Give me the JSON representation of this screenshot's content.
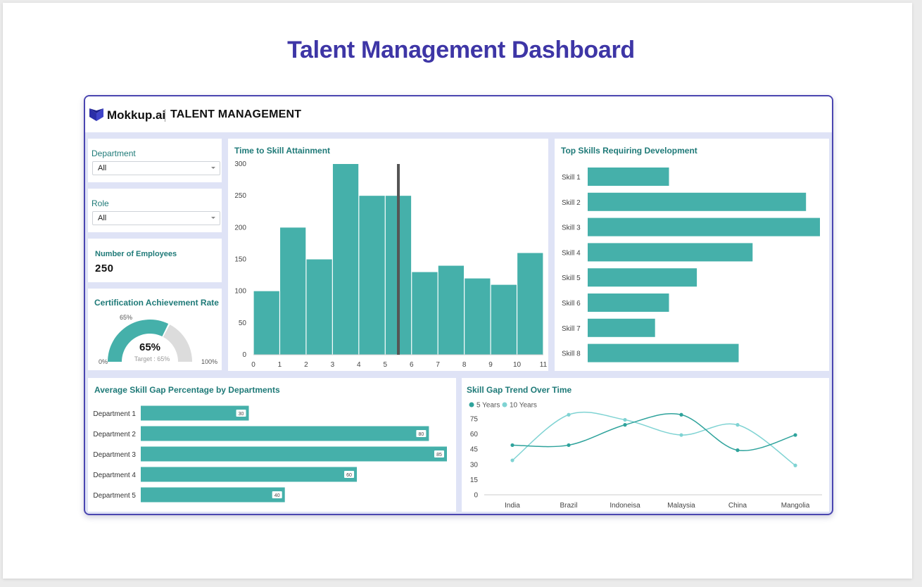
{
  "page_title": "Talent Management Dashboard",
  "header": {
    "brand": "Mokkup.ai",
    "app_title": "TALENT MANAGEMENT",
    "logo_icon": "mokkup-logo-icon"
  },
  "filters": {
    "department": {
      "label": "Department",
      "value": "All"
    },
    "role": {
      "label": "Role",
      "value": "All"
    }
  },
  "kpi": {
    "employees_label": "Number of Employees",
    "employees_value": "250"
  },
  "gauge": {
    "title": "Certification Achievement Rate",
    "value": 65,
    "value_label": "65%",
    "marker_label": "65%",
    "target_label": "Target : 65%",
    "min_label": "0%",
    "max_label": "100%",
    "fill_color": "#45b0aa",
    "track_color": "#dcdcdc"
  },
  "colors": {
    "accent": "#45b0aa",
    "accent_light": "#7fd3d3",
    "brand": "#3e36a6"
  },
  "chart_data": [
    {
      "id": "skill_time",
      "type": "bar",
      "title": "Time to Skill Attainment",
      "x_ticks": [
        "0",
        "1",
        "2",
        "3",
        "4",
        "5",
        "6",
        "7",
        "8",
        "9",
        "10",
        "11"
      ],
      "y_ticks": [
        "0",
        "50",
        "100",
        "150",
        "200",
        "250",
        "300"
      ],
      "bins": [
        [
          0,
          1
        ],
        [
          1,
          2
        ],
        [
          2,
          3
        ],
        [
          3,
          4
        ],
        [
          4,
          5
        ],
        [
          5,
          6
        ],
        [
          6,
          7
        ],
        [
          7,
          8
        ],
        [
          8,
          9
        ],
        [
          9,
          10
        ],
        [
          10,
          11
        ]
      ],
      "values": [
        100,
        200,
        150,
        300,
        250,
        250,
        130,
        140,
        120,
        110,
        160
      ],
      "ylim": [
        0,
        300
      ],
      "xlim": [
        0,
        11
      ],
      "reference_line_x": 5.5,
      "color": "#45b0aa"
    },
    {
      "id": "top_skills",
      "type": "bar",
      "orientation": "horizontal",
      "title": "Top Skills Requiring Development",
      "categories": [
        "Skill 1",
        "Skill 2",
        "Skill 3",
        "Skill 4",
        "Skill 5",
        "Skill 6",
        "Skill 7",
        "Skill 8"
      ],
      "values": [
        35,
        94,
        100,
        71,
        47,
        35,
        29,
        65
      ],
      "xlim": [
        0,
        100
      ],
      "color": "#45b0aa"
    },
    {
      "id": "dept_gap",
      "type": "bar",
      "orientation": "horizontal",
      "title": "Average Skill Gap Percentage by Departments",
      "categories": [
        "Department 1",
        "Department 2",
        "Department 3",
        "Department 4",
        "Department 5"
      ],
      "values": [
        30,
        80,
        85,
        60,
        40
      ],
      "value_labels": [
        "30",
        "80",
        "85",
        "60",
        "40"
      ],
      "xlim": [
        0,
        85
      ],
      "color": "#45b0aa"
    },
    {
      "id": "gap_trend",
      "type": "line",
      "title": "Skill Gap Trend Over Time",
      "categories": [
        "India",
        "Brazil",
        "Indoneisa",
        "Malaysia",
        "China",
        "Mangolia"
      ],
      "y_ticks": [
        "0",
        "15",
        "30",
        "45",
        "60",
        "75"
      ],
      "ylim": [
        0,
        75
      ],
      "legend_position": "top-left",
      "series": [
        {
          "name": "5 Years",
          "values": [
            49,
            49,
            69,
            79,
            44,
            59
          ],
          "color": "#2fa39c"
        },
        {
          "name": "10 Years",
          "values": [
            34,
            79,
            74,
            59,
            69,
            29
          ],
          "color": "#7fd3d3"
        }
      ]
    }
  ]
}
